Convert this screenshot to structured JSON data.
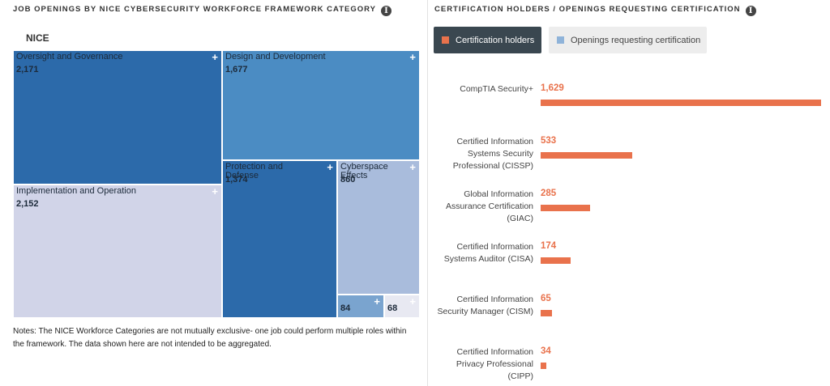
{
  "left_panel": {
    "title": "JOB OPENINGS BY NICE CYBERSECURITY WORKFORCE FRAMEWORK CATEGORY",
    "root_label": "NICE",
    "notes": "Notes: The NICE Workforce Categories are not mutually exclusive- one job could perform multiple roles within the framework. The data shown here are not intended to be aggregated."
  },
  "right_panel": {
    "title": "CERTIFICATION HOLDERS / OPENINGS REQUESTING CERTIFICATION",
    "legend": [
      {
        "label": "Certification holders",
        "color": "#e9724c",
        "active": true
      },
      {
        "label": "Openings requesting certification",
        "color": "#8fb3d9",
        "active": false
      }
    ]
  },
  "chart_data": [
    {
      "type": "treemap",
      "root": "NICE",
      "items": [
        {
          "name": "Oversight and Governance",
          "value": 2171,
          "display": "2,171",
          "color": "#2c6aaa"
        },
        {
          "name": "Implementation and Operation",
          "value": 2152,
          "display": "2,152",
          "color": "#d1d4e8"
        },
        {
          "name": "Design and Development",
          "value": 1677,
          "display": "1,677",
          "color": "#4b8cc3"
        },
        {
          "name": "Protection and Defense",
          "value": 1374,
          "display": "1,374",
          "color": "#2c6aaa"
        },
        {
          "name": "Cyberspace Effects",
          "value": 860,
          "display": "860",
          "color": "#a9bcdc"
        },
        {
          "name": "",
          "value": 84,
          "display": "84",
          "color": "#7aa4cf"
        },
        {
          "name": "",
          "value": 68,
          "display": "68",
          "color": "#e8e9f2"
        }
      ]
    },
    {
      "type": "bar",
      "orientation": "horizontal",
      "categories": [
        "CompTIA Security+",
        "Certified Information Systems Security Professional (CISSP)",
        "Global Information Assurance Certification (GIAC)",
        "Certified Information Systems Auditor (CISA)",
        "Certified Information Security Manager (CISM)",
        "Certified Information Privacy Professional (CIPP)"
      ],
      "label_lines": [
        [
          "CompTIA Security+"
        ],
        [
          "Certified Information",
          "Systems Security",
          "Professional (CISSP)"
        ],
        [
          "Global Information",
          "Assurance Certification",
          "(GIAC)"
        ],
        [
          "Certified Information",
          "Systems Auditor (CISA)"
        ],
        [
          "Certified Information",
          "Security Manager (CISM)"
        ],
        [
          "Certified Information",
          "Privacy Professional",
          "(CIPP)"
        ]
      ],
      "series": [
        {
          "name": "Certification holders",
          "color": "#e9724c",
          "values": [
            1629,
            533,
            285,
            174,
            65,
            34
          ],
          "display": [
            "1,629",
            "533",
            "285",
            "174",
            "65",
            "34"
          ]
        }
      ]
    }
  ]
}
